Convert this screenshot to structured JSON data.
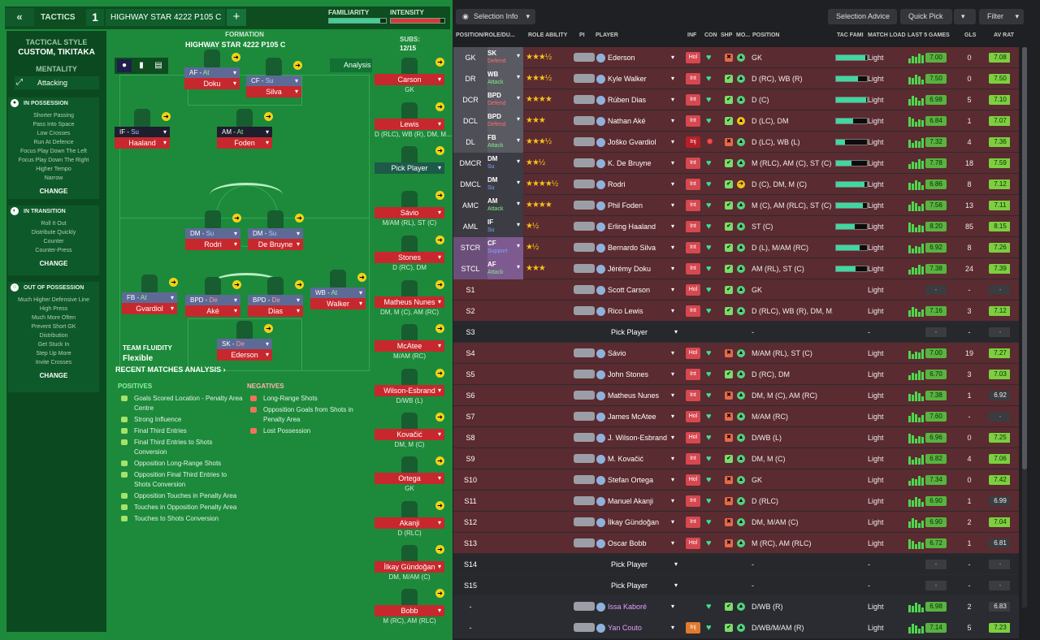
{
  "header": {
    "back_label": "«",
    "tactics_label": "TACTICS",
    "tactic_number": "1",
    "tactic_name": "HIGHWAY STAR 4222 P105 C",
    "add_label": "+",
    "familiarity_label": "FAMILIARITY",
    "intensity_label": "INTENSITY",
    "familiarity_level": 0.9,
    "intensity_level": 0.92
  },
  "sidebar": {
    "tactical_style_label": "TACTICAL STYLE",
    "tactical_style_value": "CUSTOM, TIKITAKA",
    "mentality_label": "MENTALITY",
    "mentality_value": "Attacking",
    "in_possession": {
      "title": "IN POSSESSION",
      "items": [
        "Shorter Passing",
        "Pass Into Space",
        "Low Crosses",
        "Run At Defence",
        "Focus Play Down The Left",
        "Focus Play Down The Right",
        "Higher Tempo",
        "Narrow"
      ],
      "change": "CHANGE"
    },
    "in_transition": {
      "title": "IN TRANSITION",
      "items": [
        "Roll It Out",
        "Distribute Quickly",
        "Counter",
        "Counter-Press"
      ],
      "change": "CHANGE"
    },
    "out_of_possession": {
      "title": "OUT OF POSSESSION",
      "items": [
        "Much Higher Defensive Line",
        "High Press",
        "Much More Often",
        "Prevent Short GK",
        "Distribution",
        "Get Stuck In",
        "Step Up More",
        "Invite Crosses"
      ],
      "change": "CHANGE"
    }
  },
  "pitch": {
    "formation_label": "FORMATION",
    "formation_name": "HIGHWAY STAR 4222 P105 C",
    "subs_label": "SUBS:",
    "subs_count": "12/15",
    "analysis_label": "Analysis",
    "team_fluidity_label": "TEAM FLUIDITY",
    "team_fluidity_value": "Flexible",
    "players": [
      {
        "role": "AF",
        "duty": "At",
        "name": "Doku"
      },
      {
        "role": "CF",
        "duty": "Su",
        "name": "Silva"
      },
      {
        "role": "IF",
        "duty": "Su",
        "name": "Haaland"
      },
      {
        "role": "AM",
        "duty": "At",
        "name": "Foden"
      },
      {
        "role": "DM",
        "duty": "Su",
        "name": "Rodri"
      },
      {
        "role": "DM",
        "duty": "Su",
        "name": "De Bruyne"
      },
      {
        "role": "FB",
        "duty": "At",
        "name": "Gvardiol"
      },
      {
        "role": "BPD",
        "duty": "De",
        "name": "Aké"
      },
      {
        "role": "BPD",
        "duty": "De",
        "name": "Dias"
      },
      {
        "role": "WB",
        "duty": "At",
        "name": "Walker"
      },
      {
        "role": "SK",
        "duty": "De",
        "name": "Ederson"
      }
    ],
    "subs": [
      {
        "name": "Carson",
        "pos": "GK"
      },
      {
        "name": "Lewis",
        "pos": "D (RLC), WB (R), DM, M..."
      },
      {
        "name": "Pick Player",
        "pos": ""
      },
      {
        "name": "Sávio",
        "pos": "M/AM (RL), ST (C)"
      },
      {
        "name": "Stones",
        "pos": "D (RC), DM"
      },
      {
        "name": "Matheus Nunes",
        "pos": "DM, M (C), AM (RC)"
      },
      {
        "name": "McAtee",
        "pos": "M/AM (RC)"
      },
      {
        "name": "Wilson-Esbrand",
        "pos": "D/WB (L)"
      },
      {
        "name": "Kovačić",
        "pos": "DM, M (C)"
      },
      {
        "name": "Ortega",
        "pos": "GK"
      },
      {
        "name": "Akanji",
        "pos": "D (RLC)"
      },
      {
        "name": "İlkay Gündoğan",
        "pos": "DM, M/AM (C)"
      },
      {
        "name": "Bobb",
        "pos": "M (RC), AM (RLC)"
      }
    ]
  },
  "analysis": {
    "title": "RECENT MATCHES ANALYSIS ›",
    "positives_label": "POSITIVES",
    "negatives_label": "NEGATIVES",
    "positives": [
      "Goals Scored Location - Penalty Area Centre",
      "Strong Influence",
      "Final Third Entries",
      "Final Third Entries to Shots Conversion",
      "Opposition Long-Range Shots",
      "Opposition Final Third Entries to Shots Conversion",
      "Opposition Touches in Penalty Area",
      "Touches in Opposition Penalty Area",
      "Touches to Shots Conversion"
    ],
    "negatives": [
      "Long-Range Shots",
      "Opposition Goals from Shots in Penalty Area",
      "Lost Possession"
    ]
  },
  "toolbar": {
    "selection_info": "Selection Info",
    "selection_advice": "Selection Advice",
    "quick_pick": "Quick Pick",
    "filter": "Filter"
  },
  "table": {
    "headers": {
      "position": "POSITION/ROLE/DU...",
      "role_ability": "ROLE ABILITY",
      "pi": "PI",
      "player": "PLAYER",
      "inf": "INF",
      "con": "CON",
      "shp": "SHP",
      "mo": "MO...",
      "pos": "POSITION",
      "tac": "TAC FAMI",
      "load": "MATCH LOAD",
      "last5": "LAST 5 GAMES",
      "gls": "GLS",
      "avr": "AV RAT"
    },
    "rows": [
      {
        "slot": "GK",
        "role": "SK",
        "duty": "Defend",
        "stars": "★★★½",
        "player": "Ederson",
        "inf": "Hol",
        "pos": "GK",
        "tac": 0.95,
        "load": "Light",
        "last5": "7.00",
        "gls": "0",
        "avr": "7.08"
      },
      {
        "slot": "DR",
        "role": "WB",
        "duty": "Attack",
        "stars": "★★★½",
        "player": "Kyle Walker",
        "inf": "Int",
        "pos": "D (RC), WB (R)",
        "tac": 0.7,
        "load": "Light",
        "last5": "7.50",
        "gls": "0",
        "avr": "7.50"
      },
      {
        "slot": "DCR",
        "role": "BPD",
        "duty": "Defend",
        "stars": "★★★★",
        "player": "Rúben Dias",
        "inf": "Int",
        "pos": "D (C)",
        "tac": 0.98,
        "load": "Light",
        "last5": "6.98",
        "gls": "5",
        "avr": "7.10"
      },
      {
        "slot": "DCL",
        "role": "BPD",
        "duty": "Defend",
        "stars": "★★★",
        "player": "Nathan Aké",
        "inf": "Int",
        "pos": "D (LC), DM",
        "tac": 0.55,
        "load": "Light",
        "last5": "6.84",
        "gls": "1",
        "avr": "7.07"
      },
      {
        "slot": "DL",
        "role": "FB",
        "duty": "Attack",
        "stars": "★★★½",
        "player": "Joško Gvardiol",
        "inf": "Inj",
        "pos": "D (LC), WB (L)",
        "tac": 0.3,
        "load": "Light",
        "last5": "7.32",
        "gls": "4",
        "avr": "7.36"
      },
      {
        "slot": "DMCR",
        "role": "DM",
        "duty": "Su",
        "stars": "★★½",
        "player": "K. De Bruyne",
        "inf": "Int",
        "pos": "M (RLC), AM (C), ST (C)",
        "tac": 0.5,
        "load": "Light",
        "last5": "7.78",
        "gls": "18",
        "avr": "7.59"
      },
      {
        "slot": "DMCL",
        "role": "DM",
        "duty": "Su",
        "stars": "★★★★½",
        "player": "Rodri",
        "inf": "Int",
        "pos": "D (C), DM, M (C)",
        "tac": 0.92,
        "load": "Light",
        "last5": "6.86",
        "gls": "8",
        "avr": "7.12"
      },
      {
        "slot": "AMC",
        "role": "AM",
        "duty": "Attack",
        "stars": "★★★★",
        "player": "Phil Foden",
        "inf": "Int",
        "pos": "M (C), AM (RLC), ST (C)",
        "tac": 0.88,
        "load": "Light",
        "last5": "7.56",
        "gls": "13",
        "avr": "7.11"
      },
      {
        "slot": "AML",
        "role": "IF",
        "duty": "Su",
        "stars": "★½",
        "player": "Erling Haaland",
        "inf": "Int",
        "pos": "ST (C)",
        "tac": 0.6,
        "load": "Light",
        "last5": "8.20",
        "gls": "85",
        "avr": "8.15"
      },
      {
        "slot": "STCR",
        "role": "CF",
        "duty": "Support",
        "stars": "★½",
        "player": "Bernardo Silva",
        "inf": "Int",
        "pos": "D (L), M/AM (RC)",
        "tac": 0.75,
        "load": "Light",
        "last5": "6.92",
        "gls": "8",
        "avr": "7.26"
      },
      {
        "slot": "STCL",
        "role": "AF",
        "duty": "Attack",
        "stars": "★★★",
        "player": "Jérémy Doku",
        "inf": "Int",
        "pos": "AM (RL), ST (C)",
        "tac": 0.62,
        "load": "Light",
        "last5": "7.38",
        "gls": "24",
        "avr": "7.39"
      },
      {
        "slot": "S1",
        "role": "",
        "duty": "",
        "stars": "",
        "player": "Scott Carson",
        "inf": "Hol",
        "pos": "GK",
        "tac": 0,
        "load": "Light",
        "last5": "-",
        "gls": "-",
        "avr": "-"
      },
      {
        "slot": "S2",
        "role": "",
        "duty": "",
        "stars": "",
        "player": "Rico Lewis",
        "inf": "Int",
        "pos": "D (RLC), WB (R), DM, M...",
        "tac": 0,
        "load": "Light",
        "last5": "7.16",
        "gls": "3",
        "avr": "7.12"
      },
      {
        "slot": "S3",
        "role": "",
        "duty": "",
        "stars": "",
        "player": "Pick Player",
        "inf": "",
        "pos": "-",
        "tac": 0,
        "load": "-",
        "last5": "-",
        "gls": "-",
        "avr": "-"
      },
      {
        "slot": "S4",
        "role": "",
        "duty": "",
        "stars": "",
        "player": "Sávio",
        "inf": "Hol",
        "pos": "M/AM (RL), ST (C)",
        "tac": 0,
        "load": "Light",
        "last5": "7.00",
        "gls": "19",
        "avr": "7.27"
      },
      {
        "slot": "S5",
        "role": "",
        "duty": "",
        "stars": "",
        "player": "John Stones",
        "inf": "Int",
        "pos": "D (RC), DM",
        "tac": 0,
        "load": "Light",
        "last5": "6.70",
        "gls": "3",
        "avr": "7.03"
      },
      {
        "slot": "S6",
        "role": "",
        "duty": "",
        "stars": "",
        "player": "Matheus Nunes",
        "inf": "Int",
        "pos": "DM, M (C), AM (RC)",
        "tac": 0,
        "load": "Light",
        "last5": "7.38",
        "gls": "1",
        "avr": "6.92"
      },
      {
        "slot": "S7",
        "role": "",
        "duty": "",
        "stars": "",
        "player": "James McAtee",
        "inf": "Hol",
        "pos": "M/AM (RC)",
        "tac": 0,
        "load": "Light",
        "last5": "7.60",
        "gls": "-",
        "avr": "-"
      },
      {
        "slot": "S8",
        "role": "",
        "duty": "",
        "stars": "",
        "player": "J. Wilson-Esbrand",
        "inf": "Hol",
        "pos": "D/WB (L)",
        "tac": 0,
        "load": "Light",
        "last5": "6.96",
        "gls": "0",
        "avr": "7.25"
      },
      {
        "slot": "S9",
        "role": "",
        "duty": "",
        "stars": "",
        "player": "M. Kovačić",
        "inf": "Int",
        "pos": "DM, M (C)",
        "tac": 0,
        "load": "Light",
        "last5": "6.82",
        "gls": "4",
        "avr": "7.06"
      },
      {
        "slot": "S10",
        "role": "",
        "duty": "",
        "stars": "",
        "player": "Stefan Ortega",
        "inf": "Hol",
        "pos": "GK",
        "tac": 0,
        "load": "Light",
        "last5": "7.34",
        "gls": "0",
        "avr": "7.42"
      },
      {
        "slot": "S11",
        "role": "",
        "duty": "",
        "stars": "",
        "player": "Manuel Akanji",
        "inf": "Int",
        "pos": "D (RLC)",
        "tac": 0,
        "load": "Light",
        "last5": "6.90",
        "gls": "1",
        "avr": "6.99"
      },
      {
        "slot": "S12",
        "role": "",
        "duty": "",
        "stars": "",
        "player": "İlkay Gündoğan",
        "inf": "Int",
        "pos": "DM, M/AM (C)",
        "tac": 0,
        "load": "Light",
        "last5": "6.90",
        "gls": "2",
        "avr": "7.04"
      },
      {
        "slot": "S13",
        "role": "",
        "duty": "",
        "stars": "",
        "player": "Oscar Bobb",
        "inf": "Hol",
        "pos": "M (RC), AM (RLC)",
        "tac": 0,
        "load": "Light",
        "last5": "6.72",
        "gls": "1",
        "avr": "6.81"
      },
      {
        "slot": "S14",
        "role": "",
        "duty": "",
        "stars": "",
        "player": "Pick Player",
        "inf": "",
        "pos": "-",
        "tac": 0,
        "load": "-",
        "last5": "-",
        "gls": "-",
        "avr": "-"
      },
      {
        "slot": "S15",
        "role": "",
        "duty": "",
        "stars": "",
        "player": "Pick Player",
        "inf": "",
        "pos": "-",
        "tac": 0,
        "load": "-",
        "last5": "-",
        "gls": "-",
        "avr": "-"
      },
      {
        "slot": "-",
        "role": "",
        "duty": "",
        "stars": "",
        "player": "Issa Kaboré",
        "inf": "",
        "pos": "D/WB (R)",
        "tac": 0,
        "load": "Light",
        "last5": "6.98",
        "gls": "2",
        "avr": "6.83"
      },
      {
        "slot": "-",
        "role": "",
        "duty": "",
        "stars": "",
        "player": "Yan Couto",
        "inf": "Inj",
        "pos": "D/WB/M/AM (R)",
        "tac": 0,
        "load": "Light",
        "last5": "7.14",
        "gls": "5",
        "avr": "7.23"
      }
    ]
  },
  "colors": {
    "pitch": "#1c8a3a",
    "sidebar": "#0b4a21",
    "name_red": "#c7282d",
    "row_red": "#5a2b30",
    "row_dark": "#2a2c31"
  }
}
